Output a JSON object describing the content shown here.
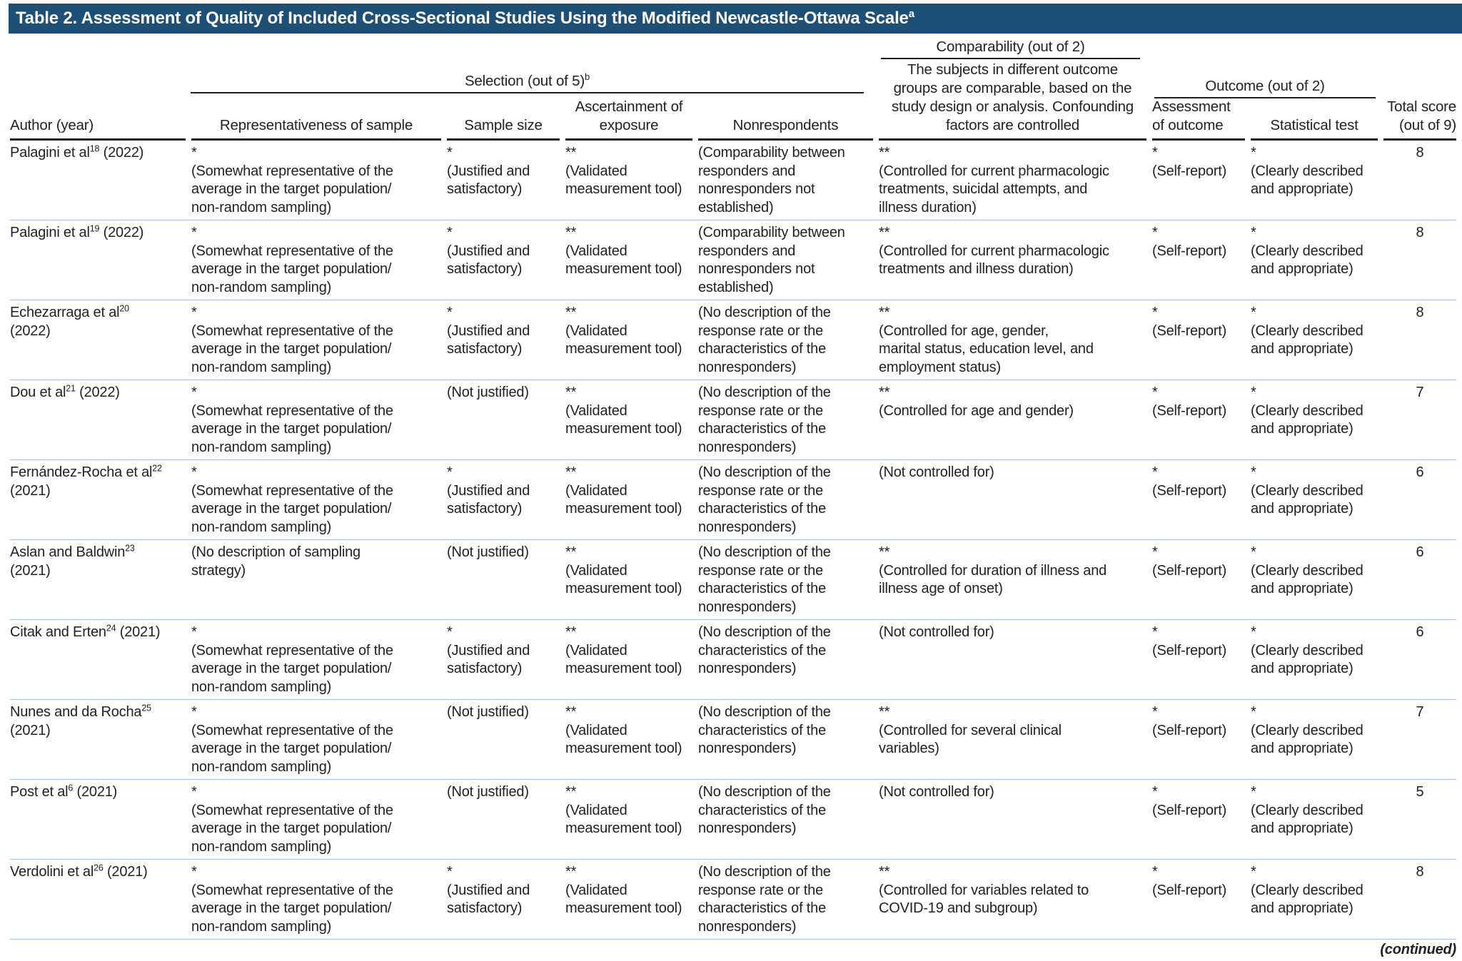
{
  "title": {
    "text": "Table 2. Assessment of Quality of Included Cross-Sectional Studies Using the Modified Newcastle-Ottawa Scale",
    "footnote_mark": "a"
  },
  "colors": {
    "title_bar": "#1D4F77",
    "title_text": "#FFFFFF",
    "row_divider": "#ADC8E2",
    "header_rule": "#1F1F1F",
    "body_text": "#222222"
  },
  "header": {
    "author": "Author (year)",
    "selection_group": {
      "label": "Selection (out of 5)",
      "footnote_mark": "b"
    },
    "representativeness": "Representativeness of sample",
    "sample_size": "Sample size",
    "ascertainment": "Ascertainment of\nexposure",
    "nonrespondents": "Nonrespondents",
    "comparability_group": "Comparability (out of 2)",
    "comparability_desc": "The subjects in different outcome\ngroups are comparable, based on the\nstudy design or analysis. Confounding\nfactors are controlled",
    "outcome_group": "Outcome (out of 2)",
    "assessment": "Assessment\nof outcome",
    "statistical": "Statistical test",
    "total": "Total score\n(out of 9)"
  },
  "rows": [
    {
      "author": {
        "name": "Palagini et al",
        "ref": "18",
        "year": " (2022)"
      },
      "repr": "*\n(Somewhat representative of the\naverage in the target population/\nnon-random sampling)",
      "sample": "*\n(Justified and\nsatisfactory)",
      "ascert": "**\n(Validated\nmeasurement tool)",
      "nonresp": "(Comparability between\nresponders and\nnonresponders not\nestablished)",
      "compar": "**\n(Controlled for current pharmacologic\ntreatments, suicidal attempts, and\nillness duration)",
      "assess": "*\n(Self-report)",
      "stat": "*\n(Clearly described\nand appropriate)",
      "total": "8"
    },
    {
      "author": {
        "name": "Palagini et al",
        "ref": "19",
        "year": " (2022)"
      },
      "repr": "*\n(Somewhat representative of the\naverage in the target population/\nnon-random sampling)",
      "sample": "*\n(Justified and\nsatisfactory)",
      "ascert": "**\n(Validated\nmeasurement tool)",
      "nonresp": "(Comparability between\nresponders and\nnonresponders not\nestablished)",
      "compar": "**\n(Controlled for current pharmacologic\ntreatments and illness duration)",
      "assess": "*\n(Self-report)",
      "stat": "*\n(Clearly described\nand appropriate)",
      "total": "8"
    },
    {
      "author": {
        "name": "Echezarraga et al",
        "ref": "20",
        "year": "\n(2022)"
      },
      "repr": "*\n(Somewhat representative of the\naverage in the target population/\nnon-random sampling)",
      "sample": "*\n(Justified and\nsatisfactory)",
      "ascert": "**\n(Validated\nmeasurement tool)",
      "nonresp": "(No description of the\nresponse rate or the\ncharacteristics of the\nnonresponders)",
      "compar": "**\n(Controlled for age, gender,\nmarital status, education level, and\nemployment status)",
      "assess": "*\n(Self-report)",
      "stat": "*\n(Clearly described\nand appropriate)",
      "total": "8"
    },
    {
      "author": {
        "name": "Dou et al",
        "ref": "21",
        "year": " (2022)"
      },
      "repr": "*\n(Somewhat representative of the\naverage in the target population/\nnon-random sampling)",
      "sample": "(Not justified)",
      "ascert": "**\n(Validated\nmeasurement tool)",
      "nonresp": "(No description of the\nresponse rate or the\ncharacteristics of the\nnonresponders)",
      "compar": "**\n(Controlled for age and gender)",
      "assess": "*\n(Self-report)",
      "stat": "*\n(Clearly described\nand appropriate)",
      "total": "7"
    },
    {
      "author": {
        "name": "Fernández-Rocha et al",
        "ref": "22",
        "year": "\n(2021)"
      },
      "repr": "*\n(Somewhat representative of the\naverage in the target population/\nnon-random sampling)",
      "sample": "*\n(Justified and\nsatisfactory)",
      "ascert": "**\n(Validated\nmeasurement tool)",
      "nonresp": "(No description of the\nresponse rate or the\ncharacteristics of the\nnonresponders)",
      "compar": "(Not controlled for)",
      "assess": "*\n(Self-report)",
      "stat": "*\n(Clearly described\nand appropriate)",
      "total": "6"
    },
    {
      "author": {
        "name": "Aslan and Baldwin",
        "ref": "23",
        "year": "\n(2021)"
      },
      "repr": "(No description of sampling\nstrategy)",
      "sample": "(Not justified)",
      "ascert": "**\n(Validated\nmeasurement tool)",
      "nonresp": "(No description of the\nresponse rate or the\ncharacteristics of the\nnonresponders)",
      "compar": "**\n(Controlled for duration of illness and\nillness age of onset)",
      "assess": "*\n(Self-report)",
      "stat": "*\n(Clearly described\nand appropriate)",
      "total": "6"
    },
    {
      "author": {
        "name": "Citak and Erten",
        "ref": "24",
        "year": " (2021)"
      },
      "repr": "*\n(Somewhat representative of the\naverage in the target population/\nnon-random sampling)",
      "sample": "*\n(Justified and\nsatisfactory)",
      "ascert": "**\n(Validated\nmeasurement tool)",
      "nonresp": "(No description of the\ncharacteristics of the\nnonresponders)",
      "compar": "(Not controlled for)",
      "assess": "*\n(Self-report)",
      "stat": "*\n(Clearly described\nand appropriate)",
      "total": "6"
    },
    {
      "author": {
        "name": "Nunes and da Rocha",
        "ref": "25",
        "year": "\n(2021)"
      },
      "repr": "*\n(Somewhat representative of the\naverage in the target population/\nnon-random sampling)",
      "sample": "(Not justified)",
      "ascert": "**\n(Validated\nmeasurement tool)",
      "nonresp": "(No description of the\ncharacteristics of the\nnonresponders)",
      "compar": "**\n(Controlled for several clinical\nvariables)",
      "assess": "*\n(Self-report)",
      "stat": "*\n(Clearly described\nand appropriate)",
      "total": "7"
    },
    {
      "author": {
        "name": "Post et al",
        "ref": "6",
        "year": " (2021)"
      },
      "repr": "*\n(Somewhat representative of the\naverage in the target population/\nnon-random sampling)",
      "sample": "(Not justified)",
      "ascert": "**\n(Validated\nmeasurement tool)",
      "nonresp": "(No description of the\ncharacteristics of the\nnonresponders)",
      "compar": "(Not controlled for)",
      "assess": "*\n(Self-report)",
      "stat": "*\n(Clearly described\nand appropriate)",
      "total": "5"
    },
    {
      "author": {
        "name": "Verdolini et al",
        "ref": "26",
        "year": " (2021)"
      },
      "repr": "*\n(Somewhat representative of the\naverage in the target population/\nnon-random sampling)",
      "sample": "*\n(Justified and\nsatisfactory)",
      "ascert": "**\n(Validated\nmeasurement tool)",
      "nonresp": "(No description of the\nresponse rate or the\ncharacteristics of the\nnonresponders)",
      "compar": "**\n(Controlled for variables related to\nCOVID-19 and subgroup)",
      "assess": "*\n(Self-report)",
      "stat": "*\n(Clearly described\nand appropriate)",
      "total": "8"
    }
  ],
  "footer": {
    "continued": "(continued)"
  }
}
